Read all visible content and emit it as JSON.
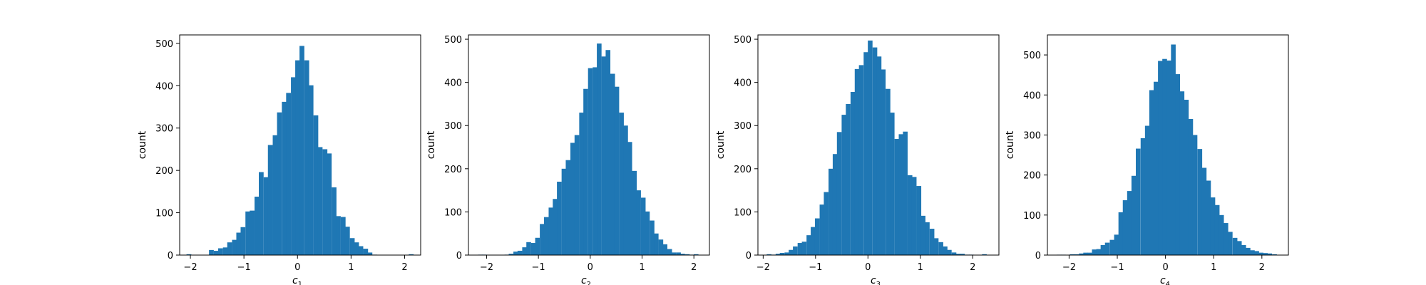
{
  "chart_data": [
    {
      "type": "bar",
      "xlabel": "c",
      "xlabel_subscript": "1",
      "ylabel": "count",
      "xlim": [
        -2.2,
        2.3
      ],
      "ylim": [
        0,
        520
      ],
      "xticks": [
        -2,
        -1,
        0,
        1,
        2
      ],
      "yticks": [
        0,
        100,
        200,
        300,
        400,
        500
      ],
      "bin_width": 0.0845,
      "x": [
        -2.03,
        -1.95,
        -1.86,
        -1.78,
        -1.69,
        -1.61,
        -1.52,
        -1.44,
        -1.35,
        -1.27,
        -1.18,
        -1.1,
        -1.02,
        -0.93,
        -0.85,
        -0.76,
        -0.68,
        -0.59,
        -0.51,
        -0.42,
        -0.34,
        -0.25,
        -0.17,
        -0.08,
        0.0,
        0.08,
        0.17,
        0.25,
        0.34,
        0.42,
        0.51,
        0.59,
        0.68,
        0.76,
        0.85,
        0.93,
        1.02,
        1.1,
        1.18,
        1.27,
        1.35,
        1.44,
        1.52,
        1.61,
        1.69,
        1.78,
        1.86,
        1.95,
        2.03,
        2.12
      ],
      "values": [
        2,
        0,
        0,
        0,
        0,
        12,
        10,
        16,
        18,
        30,
        36,
        53,
        66,
        103,
        105,
        138,
        196,
        184,
        260,
        283,
        337,
        362,
        383,
        420,
        460,
        494,
        460,
        401,
        330,
        255,
        250,
        240,
        160,
        92,
        90,
        67,
        40,
        30,
        21,
        15,
        6,
        1,
        0,
        0,
        0,
        0,
        0,
        0,
        0,
        2
      ],
      "color": "#1f77b4"
    },
    {
      "type": "bar",
      "xlabel": "c",
      "xlabel_subscript": "2",
      "ylabel": "count",
      "xlim": [
        -2.35,
        2.3
      ],
      "ylim": [
        0,
        510
      ],
      "xticks": [
        -2,
        -1,
        0,
        1,
        2
      ],
      "yticks": [
        0,
        100,
        200,
        300,
        400,
        500
      ],
      "bin_width": 0.0853,
      "x": [
        -2.12,
        -2.04,
        -1.95,
        -1.87,
        -1.78,
        -1.7,
        -1.61,
        -1.53,
        -1.44,
        -1.36,
        -1.27,
        -1.19,
        -1.1,
        -1.02,
        -0.93,
        -0.85,
        -0.76,
        -0.68,
        -0.6,
        -0.51,
        -0.43,
        -0.34,
        -0.26,
        -0.17,
        -0.09,
        0.0,
        0.09,
        0.17,
        0.26,
        0.34,
        0.43,
        0.51,
        0.6,
        0.68,
        0.76,
        0.85,
        0.93,
        1.02,
        1.1,
        1.19,
        1.27,
        1.36,
        1.44,
        1.53,
        1.61,
        1.7,
        1.78,
        1.87,
        1.95,
        2.04
      ],
      "values": [
        1,
        1,
        0,
        0,
        0,
        0,
        1,
        3,
        8,
        10,
        18,
        30,
        28,
        40,
        72,
        88,
        110,
        130,
        170,
        200,
        220,
        260,
        278,
        330,
        385,
        433,
        435,
        490,
        460,
        475,
        420,
        390,
        330,
        300,
        262,
        195,
        150,
        133,
        101,
        80,
        50,
        36,
        25,
        14,
        6,
        6,
        3,
        2,
        1,
        2
      ],
      "color": "#1f77b4"
    },
    {
      "type": "bar",
      "xlabel": "c",
      "xlabel_subscript": "3",
      "ylabel": "count",
      "xlim": [
        -2.1,
        2.5
      ],
      "ylim": [
        0,
        510
      ],
      "xticks": [
        -2,
        -1,
        0,
        1,
        2
      ],
      "yticks": [
        0,
        100,
        200,
        300,
        400,
        500
      ],
      "bin_width": 0.0841,
      "x": [
        -1.89,
        -1.81,
        -1.72,
        -1.64,
        -1.55,
        -1.47,
        -1.39,
        -1.3,
        -1.22,
        -1.13,
        -1.05,
        -0.97,
        -0.88,
        -0.8,
        -0.71,
        -0.63,
        -0.55,
        -0.46,
        -0.38,
        -0.29,
        -0.21,
        -0.13,
        -0.04,
        0.04,
        0.13,
        0.21,
        0.29,
        0.38,
        0.46,
        0.55,
        0.63,
        0.71,
        0.8,
        0.88,
        0.97,
        1.05,
        1.13,
        1.22,
        1.3,
        1.39,
        1.47,
        1.55,
        1.64,
        1.72,
        1.8,
        1.89,
        1.97,
        2.06,
        2.14,
        2.22
      ],
      "values": [
        2,
        1,
        3,
        5,
        6,
        12,
        20,
        28,
        31,
        46,
        65,
        85,
        117,
        146,
        200,
        234,
        285,
        325,
        350,
        378,
        431,
        440,
        470,
        497,
        481,
        460,
        430,
        385,
        330,
        269,
        280,
        286,
        185,
        181,
        160,
        91,
        76,
        61,
        39,
        30,
        20,
        12,
        6,
        3,
        3,
        1,
        1,
        0,
        0,
        2
      ],
      "color": "#1f77b4"
    },
    {
      "type": "bar",
      "xlabel": "c",
      "xlabel_subscript": "4",
      "ylabel": "count",
      "xlim": [
        -2.45,
        2.55
      ],
      "ylim": [
        0,
        550
      ],
      "xticks": [
        -2,
        -1,
        0,
        1,
        2
      ],
      "yticks": [
        0,
        100,
        200,
        300,
        400,
        500
      ],
      "bin_width": 0.0913,
      "x": [
        -2.21,
        -2.12,
        -2.03,
        -1.94,
        -1.85,
        -1.75,
        -1.66,
        -1.57,
        -1.48,
        -1.39,
        -1.3,
        -1.21,
        -1.11,
        -1.02,
        -0.93,
        -0.84,
        -0.75,
        -0.66,
        -0.57,
        -0.47,
        -0.38,
        -0.29,
        -0.2,
        -0.11,
        -0.02,
        0.07,
        0.16,
        0.25,
        0.34,
        0.43,
        0.52,
        0.61,
        0.71,
        0.8,
        0.89,
        0.98,
        1.07,
        1.16,
        1.25,
        1.34,
        1.44,
        1.53,
        1.62,
        1.71,
        1.8,
        1.89,
        1.98,
        2.07,
        2.16,
        2.26
      ],
      "values": [
        1,
        1,
        0,
        2,
        2,
        4,
        6,
        6,
        14,
        15,
        25,
        31,
        38,
        51,
        107,
        137,
        160,
        198,
        266,
        292,
        323,
        412,
        433,
        485,
        490,
        486,
        526,
        452,
        409,
        388,
        340,
        300,
        265,
        218,
        186,
        144,
        125,
        100,
        80,
        58,
        43,
        35,
        25,
        18,
        12,
        10,
        6,
        5,
        4,
        2
      ],
      "color": "#1f77b4"
    }
  ]
}
